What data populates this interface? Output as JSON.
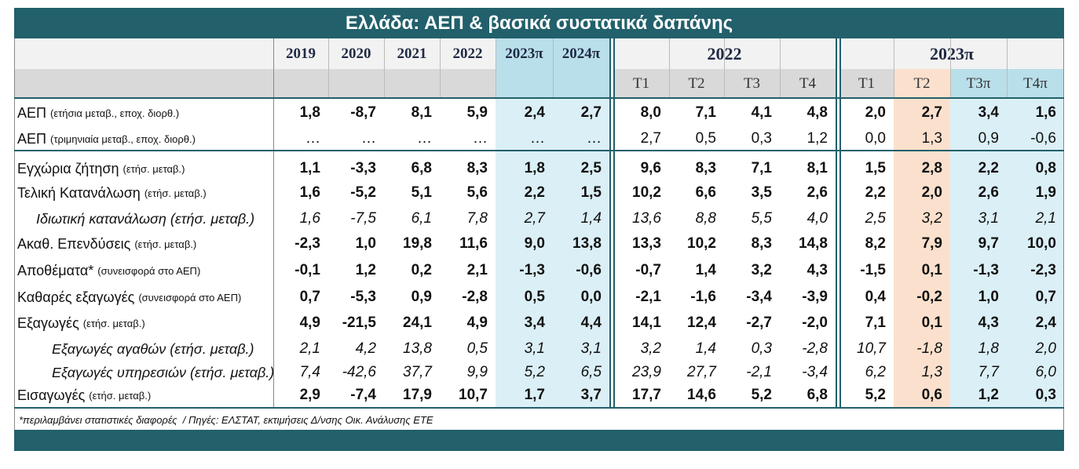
{
  "header": {
    "title": "Ελλάδα: ΑΕΠ & βασικά συστατικά δαπάνης"
  },
  "columns": {
    "years": [
      "2019",
      "2020",
      "2021",
      "2022",
      "2023π",
      "2024π"
    ],
    "groups": [
      "2022",
      "2023π"
    ],
    "quarters": [
      "T1",
      "T2",
      "T3",
      "T4",
      "T1",
      "T2",
      "T3π",
      "T4π"
    ]
  },
  "rows": [
    {
      "label": "ΑΕΠ",
      "note": "(ετήσια μεταβ., εποχ. διορθ.)",
      "style": "bold",
      "values": [
        "1,8",
        "-8,7",
        "8,1",
        "5,9",
        "2,4",
        "2,7",
        "8,0",
        "7,1",
        "4,1",
        "4,8",
        "2,0",
        "2,7",
        "3,4",
        "1,6"
      ]
    },
    {
      "label": "ΑΕΠ",
      "note": "(τριμηνιαία μεταβ., εποχ. διορθ.)",
      "style": "normal",
      "values": [
        "…",
        "…",
        "…",
        "…",
        "…",
        "…",
        "2,7",
        "0,5",
        "0,3",
        "1,2",
        "0,0",
        "1,3",
        "0,9",
        "-0,6"
      ]
    },
    {
      "label": "Εγχώρια ζήτηση",
      "note": "(ετήσ. μεταβ.)",
      "style": "bold",
      "values": [
        "1,1",
        "-3,3",
        "6,8",
        "8,3",
        "1,8",
        "2,5",
        "9,6",
        "8,3",
        "7,1",
        "8,1",
        "1,5",
        "2,8",
        "2,2",
        "0,8"
      ]
    },
    {
      "label": "Τελική Κατανάλωση",
      "note": "(ετήσ. μεταβ.)",
      "style": "bold",
      "values": [
        "1,6",
        "-5,2",
        "5,1",
        "5,6",
        "2,2",
        "1,5",
        "10,2",
        "6,6",
        "3,5",
        "2,6",
        "2,2",
        "2,0",
        "2,6",
        "1,9"
      ]
    },
    {
      "label": "Ιδιωτική κατανάλωση (ετήσ. μεταβ.)",
      "style": "italic",
      "values": [
        "1,6",
        "-7,5",
        "6,1",
        "7,8",
        "2,7",
        "1,4",
        "13,6",
        "8,8",
        "5,5",
        "4,0",
        "2,5",
        "3,2",
        "3,1",
        "2,1"
      ]
    },
    {
      "label": "Ακαθ. Επενδύσεις",
      "note": "(ετήσ. μεταβ.)",
      "style": "bold",
      "values": [
        "-2,3",
        "1,0",
        "19,8",
        "11,6",
        "9,0",
        "13,8",
        "13,3",
        "10,2",
        "8,3",
        "14,8",
        "8,2",
        "7,9",
        "9,7",
        "10,0"
      ]
    },
    {
      "label": "Αποθέματα*",
      "note": "(συνεισφορά στο ΑΕΠ)",
      "style": "bold",
      "values": [
        "-0,1",
        "1,2",
        "0,2",
        "2,1",
        "-1,3",
        "-0,6",
        "-0,7",
        "1,4",
        "3,2",
        "4,3",
        "-1,5",
        "0,1",
        "-1,3",
        "-2,3"
      ]
    },
    {
      "label": "Καθαρές εξαγωγές",
      "note": "(συνεισφορά στο ΑΕΠ)",
      "style": "bold",
      "values": [
        "0,7",
        "-5,3",
        "0,9",
        "-2,8",
        "0,5",
        "0,0",
        "-2,1",
        "-1,6",
        "-3,4",
        "-3,9",
        "0,4",
        "-0,2",
        "1,0",
        "0,7"
      ]
    },
    {
      "label": "Εξαγωγές",
      "note": "(ετήσ. μεταβ.)",
      "style": "bold",
      "values": [
        "4,9",
        "-21,5",
        "24,1",
        "4,9",
        "3,4",
        "4,4",
        "14,1",
        "12,4",
        "-2,7",
        "-2,0",
        "7,1",
        "0,1",
        "4,3",
        "2,4"
      ]
    },
    {
      "label": "Εξαγωγές αγαθών (ετήσ. μεταβ.)",
      "style": "italic-deep",
      "values": [
        "2,1",
        "4,2",
        "13,8",
        "0,5",
        "3,1",
        "3,1",
        "3,2",
        "1,4",
        "0,3",
        "-2,8",
        "10,7",
        "-1,8",
        "1,8",
        "2,0"
      ]
    },
    {
      "label": "Εξαγωγές υπηρεσιών (ετήσ. μεταβ.)",
      "style": "italic-deep",
      "values": [
        "7,4",
        "-42,6",
        "37,7",
        "9,9",
        "5,2",
        "6,5",
        "23,9",
        "27,7",
        "-2,1",
        "-3,4",
        "6,2",
        "1,3",
        "7,7",
        "6,0"
      ]
    },
    {
      "label": "Εισαγωγές",
      "note": "(ετήσ. μεταβ.)",
      "style": "bold",
      "values": [
        "2,9",
        "-7,4",
        "17,9",
        "10,7",
        "1,7",
        "3,7",
        "17,7",
        "14,6",
        "5,2",
        "6,8",
        "5,2",
        "0,6",
        "1,2",
        "0,3"
      ]
    }
  ],
  "footnote": "*περιλαμβάνει στατιστικές διαφορές  / Πηγές: ΕΛΣΤΑΤ, εκτιμήσεις Δ/νσης Οικ. Ανάλυσης ΕΤΕ"
}
